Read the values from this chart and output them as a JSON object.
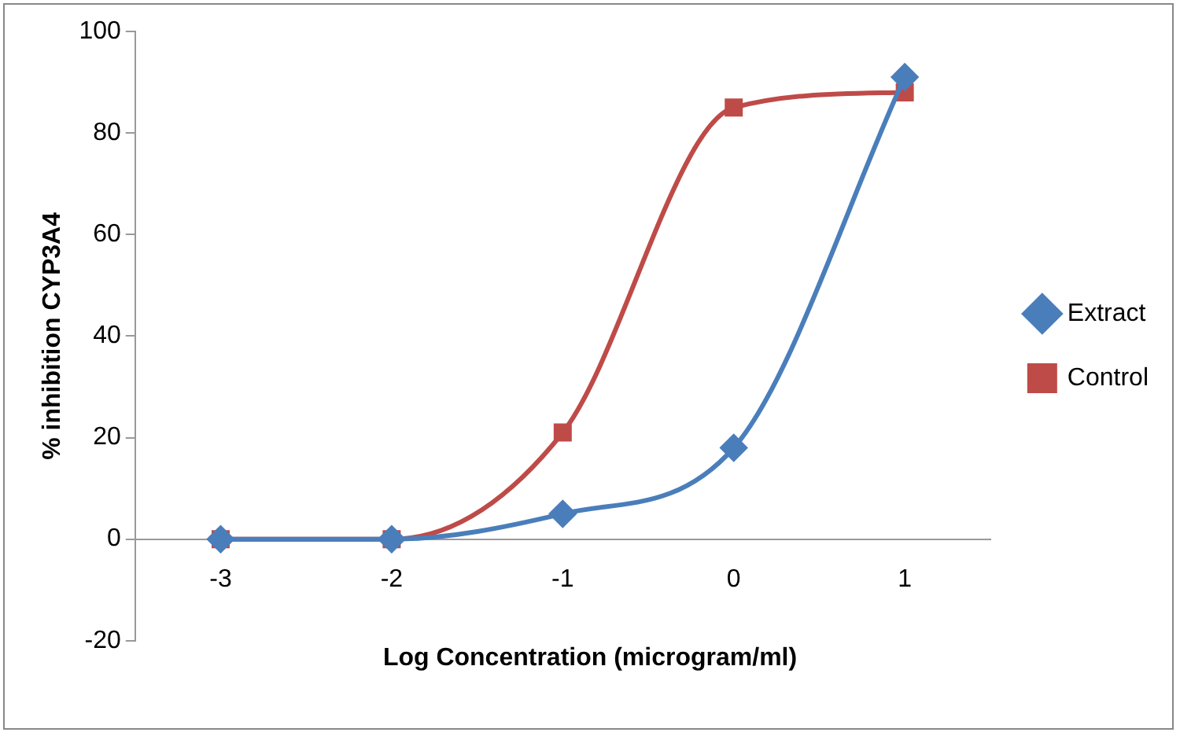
{
  "chart_data": {
    "type": "line",
    "xlabel": "Log Concentration (microgram/ml)",
    "ylabel": "% inhibition CYP3A4",
    "categories": [
      "-3",
      "-2",
      "-1",
      "0",
      "1"
    ],
    "series": [
      {
        "name": "Extract",
        "color": "#4a7ebb",
        "marker": "diamond",
        "values": [
          0,
          0,
          5,
          18,
          91
        ]
      },
      {
        "name": "Control",
        "color": "#be4b48",
        "marker": "square",
        "values": [
          0,
          0,
          21,
          85,
          88
        ]
      }
    ],
    "ylim": [
      -20,
      100
    ],
    "yticks": [
      -20,
      0,
      20,
      40,
      60,
      80,
      100
    ],
    "grid": false,
    "legend": "right",
    "line_style": "solid"
  }
}
